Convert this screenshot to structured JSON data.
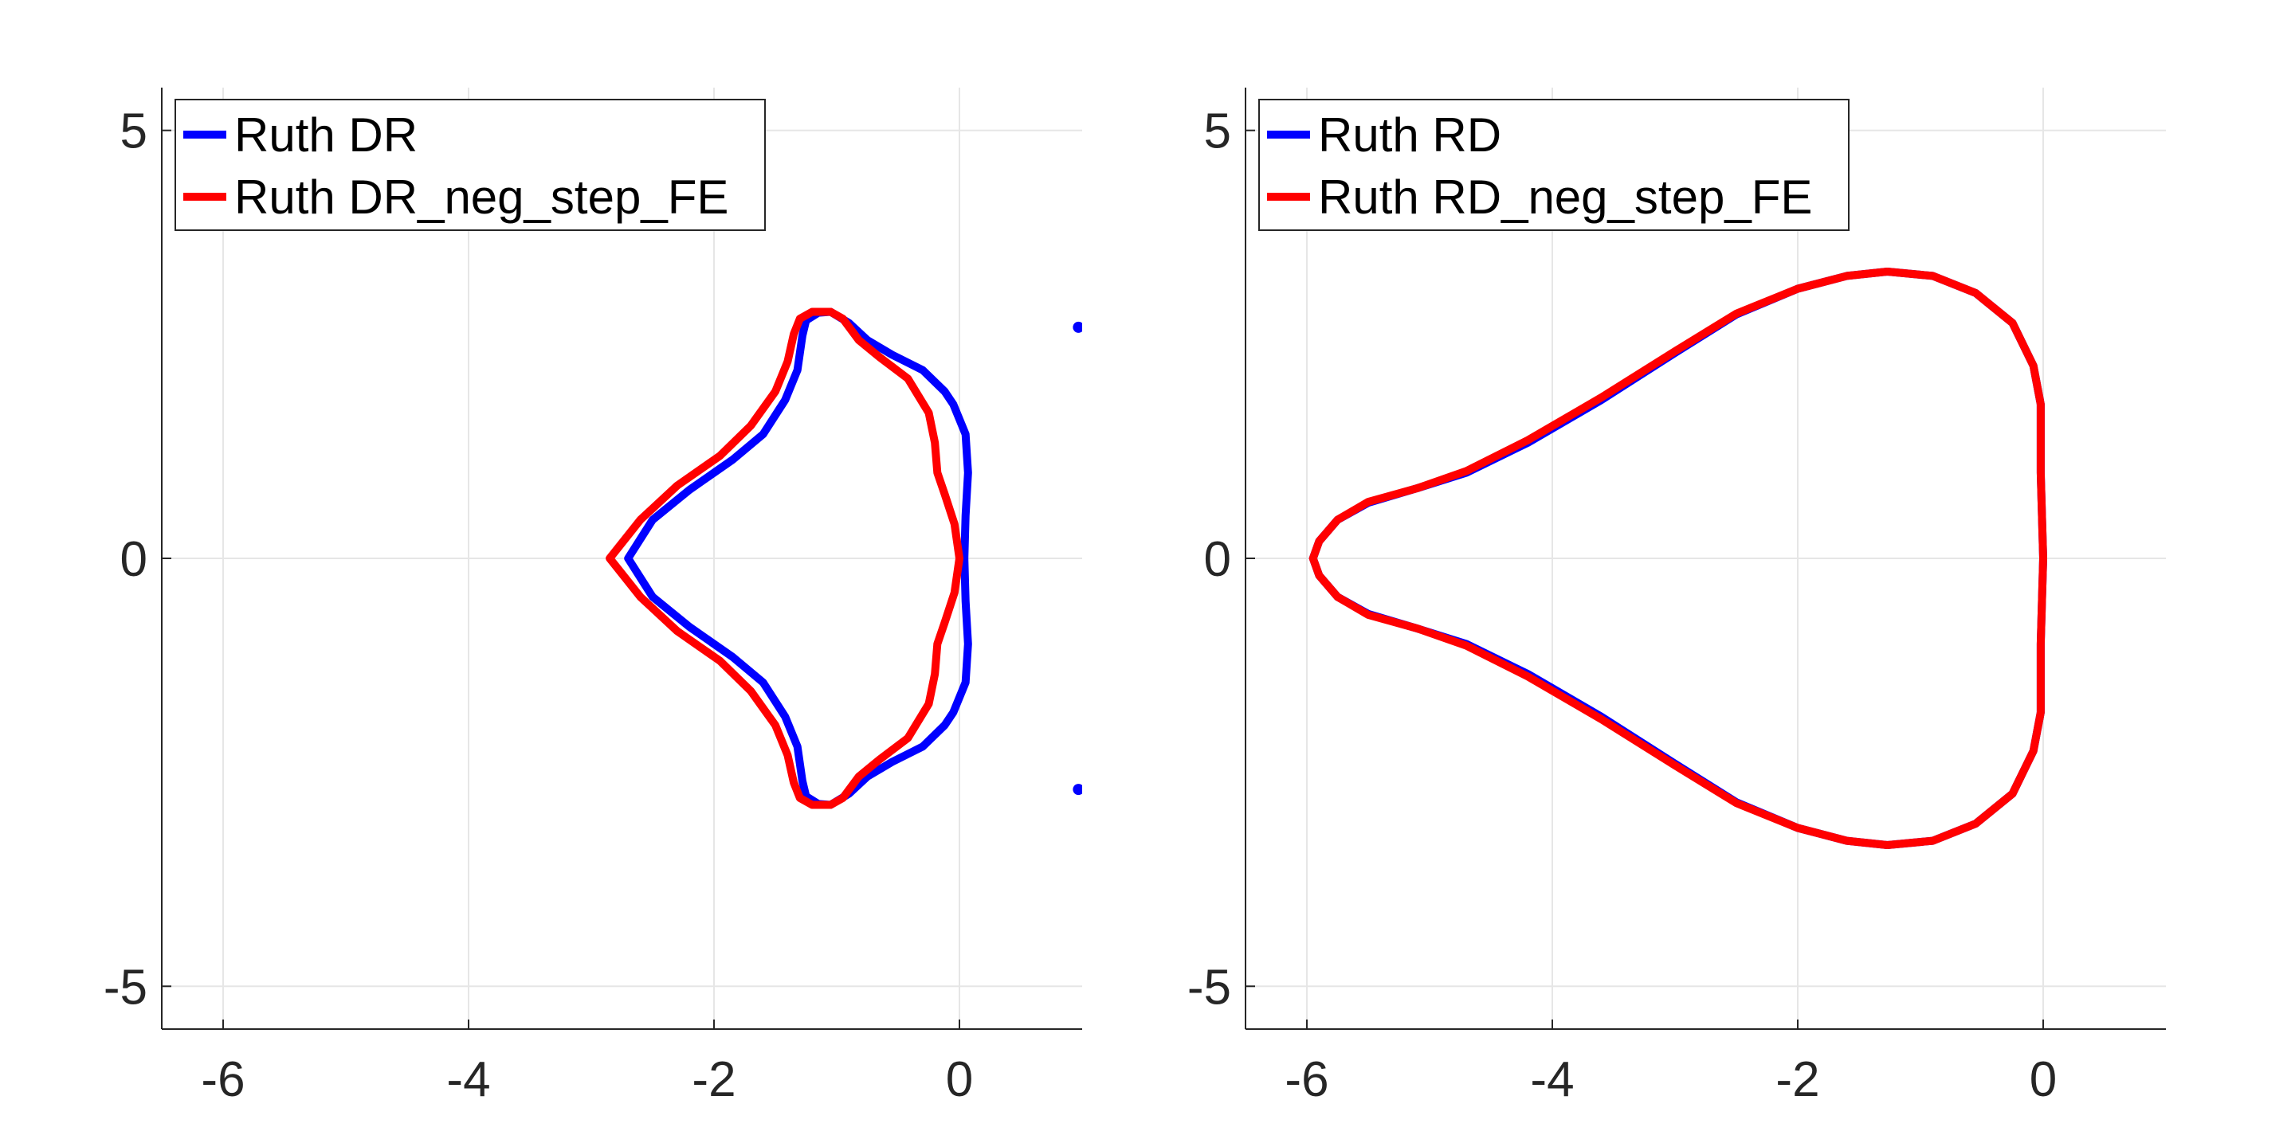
{
  "chart_data": [
    {
      "type": "line",
      "title": "",
      "xlabel": "",
      "ylabel": "",
      "xlim": [
        -6.5,
        1
      ],
      "ylim": [
        -5.5,
        5.5
      ],
      "x_ticks": [
        -6,
        -4,
        -2,
        0
      ],
      "x_tick_labels": [
        "-6",
        "-4",
        "-2",
        "0"
      ],
      "y_ticks": [
        -5,
        0,
        5
      ],
      "y_tick_labels": [
        "-5",
        "0",
        "5"
      ],
      "grid": true,
      "legend_position": "top-left",
      "series": [
        {
          "name": "Ruth DR",
          "color": "#0000ff",
          "x": [
            -2.7,
            -2.5,
            -2.2,
            -1.85,
            -1.6,
            -1.42,
            -1.32,
            -1.28,
            -1.25,
            -1.15,
            -1.05,
            -0.9,
            -0.75,
            -0.55,
            -0.3,
            -0.12,
            -0.05,
            0.05,
            0.07,
            0.05,
            0.04,
            0.05,
            0.07,
            0.05,
            -0.05,
            -0.12,
            -0.3,
            -0.55,
            -0.75,
            -0.9,
            -1.05,
            -1.15,
            -1.25,
            -1.28,
            -1.32,
            -1.42,
            -1.6,
            -1.85,
            -2.2,
            -2.5,
            -2.7
          ],
          "y": [
            0,
            0.45,
            0.8,
            1.15,
            1.45,
            1.85,
            2.2,
            2.6,
            2.78,
            2.87,
            2.88,
            2.75,
            2.55,
            2.38,
            2.2,
            1.95,
            1.8,
            1.45,
            1.0,
            0.5,
            0,
            -0.5,
            -1.0,
            -1.45,
            -1.8,
            -1.95,
            -2.2,
            -2.38,
            -2.55,
            -2.75,
            -2.88,
            -2.87,
            -2.78,
            -2.6,
            -2.2,
            -1.85,
            -1.45,
            -1.15,
            -0.8,
            -0.45,
            0
          ]
        },
        {
          "name": "Ruth DR_neg_step_FE",
          "color": "#ff0000",
          "x": [
            -2.85,
            -2.6,
            -2.3,
            -1.95,
            -1.7,
            -1.5,
            -1.4,
            -1.35,
            -1.3,
            -1.2,
            -1.05,
            -0.95,
            -0.82,
            -0.65,
            -0.42,
            -0.25,
            -0.2,
            -0.18,
            -0.12,
            -0.04,
            0.0,
            -0.04,
            -0.12,
            -0.18,
            -0.2,
            -0.25,
            -0.42,
            -0.65,
            -0.82,
            -0.95,
            -1.05,
            -1.2,
            -1.3,
            -1.35,
            -1.4,
            -1.5,
            -1.7,
            -1.95,
            -2.3,
            -2.6,
            -2.85
          ],
          "y": [
            0,
            0.45,
            0.85,
            1.2,
            1.55,
            1.95,
            2.3,
            2.62,
            2.8,
            2.88,
            2.88,
            2.8,
            2.55,
            2.35,
            2.1,
            1.7,
            1.35,
            1.0,
            0.75,
            0.4,
            0,
            -0.4,
            -0.75,
            -1.0,
            -1.35,
            -1.7,
            -2.1,
            -2.35,
            -2.55,
            -2.8,
            -2.88,
            -2.88,
            -2.8,
            -2.62,
            -2.3,
            -1.95,
            -1.55,
            -1.2,
            -0.85,
            -0.45,
            0
          ]
        },
        {
          "name": "",
          "color": "#0000ff",
          "type": "scatter",
          "x": [
            0.97,
            0.97
          ],
          "y": [
            2.7,
            -2.7
          ]
        }
      ]
    },
    {
      "type": "line",
      "title": "",
      "xlabel": "",
      "ylabel": "",
      "xlim": [
        -6.5,
        1
      ],
      "ylim": [
        -5.5,
        5.5
      ],
      "x_ticks": [
        -6,
        -4,
        -2,
        0
      ],
      "x_tick_labels": [
        "-6",
        "-4",
        "-2",
        "0"
      ],
      "y_ticks": [
        -5,
        0,
        5
      ],
      "y_tick_labels": [
        "-5",
        "0",
        "5"
      ],
      "grid": true,
      "legend_position": "top-left",
      "series": [
        {
          "name": "Ruth RD",
          "color": "#0000ff",
          "x": [
            -5.95,
            -5.9,
            -5.75,
            -5.5,
            -5.1,
            -4.7,
            -4.2,
            -3.6,
            -3.0,
            -2.5,
            -2.0,
            -1.6,
            -1.27,
            -0.9,
            -0.55,
            -0.25,
            -0.08,
            -0.02,
            -0.02,
            0.0,
            -0.02,
            -0.02,
            -0.08,
            -0.25,
            -0.55,
            -0.9,
            -1.27,
            -1.6,
            -2.0,
            -2.5,
            -3.0,
            -3.6,
            -4.2,
            -4.7,
            -5.1,
            -5.5,
            -5.75,
            -5.9,
            -5.95
          ],
          "y": [
            0,
            0.2,
            0.45,
            0.65,
            0.82,
            1.0,
            1.35,
            1.85,
            2.4,
            2.85,
            3.15,
            3.3,
            3.35,
            3.3,
            3.1,
            2.75,
            2.25,
            1.8,
            1.0,
            0,
            -1.0,
            -1.8,
            -2.25,
            -2.75,
            -3.1,
            -3.3,
            -3.35,
            -3.3,
            -3.15,
            -2.85,
            -2.4,
            -1.85,
            -1.35,
            -1.0,
            -0.82,
            -0.65,
            -0.45,
            -0.2,
            0
          ]
        },
        {
          "name": "Ruth RD_neg_step_FE",
          "color": "#ff0000",
          "x": [
            -5.95,
            -5.9,
            -5.75,
            -5.5,
            -5.1,
            -4.7,
            -4.2,
            -3.6,
            -3.0,
            -2.5,
            -2.0,
            -1.6,
            -1.27,
            -0.9,
            -0.55,
            -0.25,
            -0.08,
            -0.02,
            -0.02,
            0.0,
            -0.02,
            -0.02,
            -0.08,
            -0.25,
            -0.55,
            -0.9,
            -1.27,
            -1.6,
            -2.0,
            -2.5,
            -3.0,
            -3.6,
            -4.2,
            -4.7,
            -5.1,
            -5.5,
            -5.75,
            -5.9,
            -5.95
          ],
          "y": [
            0,
            0.2,
            0.45,
            0.66,
            0.82,
            1.02,
            1.38,
            1.88,
            2.42,
            2.86,
            3.15,
            3.3,
            3.35,
            3.3,
            3.1,
            2.75,
            2.25,
            1.8,
            1.0,
            0,
            -1.0,
            -1.8,
            -2.25,
            -2.75,
            -3.1,
            -3.3,
            -3.35,
            -3.3,
            -3.15,
            -2.86,
            -2.42,
            -1.88,
            -1.38,
            -1.02,
            -0.82,
            -0.66,
            -0.45,
            -0.2,
            0
          ]
        }
      ]
    }
  ]
}
